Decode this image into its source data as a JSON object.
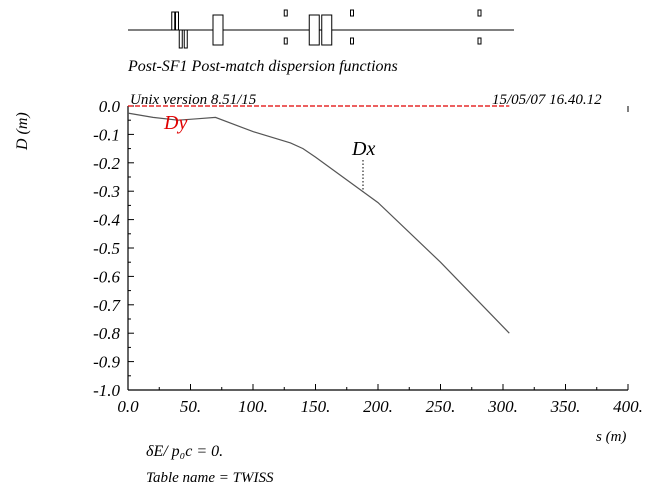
{
  "chart_data": {
    "type": "line",
    "title": "Post-SF1 Post-match dispersion functions",
    "version": "Unix version 8.51/15",
    "date": "15/05/07 16.40.12",
    "xlabel": "s (m)",
    "ylabel": "D (m)",
    "xlim": [
      0,
      400
    ],
    "ylim": [
      -1.0,
      0.0
    ],
    "x_ticks": [
      "0.0",
      "50.",
      "100.",
      "150.",
      "200.",
      "250.",
      "300.",
      "350.",
      "400."
    ],
    "y_ticks": [
      "0.0",
      "-0.1",
      "-0.2",
      "-0.3",
      "-0.4",
      "-0.5",
      "-0.6",
      "-0.7",
      "-0.8",
      "-0.9",
      "-1.0"
    ],
    "series": [
      {
        "name": "Dx",
        "color": "#555555",
        "x": [
          0,
          20,
          40,
          55,
          70,
          100,
          130,
          140,
          150,
          200,
          250,
          305
        ],
        "y": [
          -0.025,
          -0.04,
          -0.05,
          -0.045,
          -0.04,
          -0.09,
          -0.13,
          -0.15,
          -0.18,
          -0.34,
          -0.55,
          -0.8
        ]
      },
      {
        "name": "Dy",
        "color": "#e00000",
        "x": [
          0,
          50,
          100,
          150,
          200,
          250,
          305
        ],
        "y": [
          0.0,
          0.0,
          0.0,
          0.0,
          0.0,
          0.0,
          0.0
        ]
      }
    ],
    "legend_labels": {
      "dx": "Dx",
      "dy": "Dy"
    },
    "annotations": [
      "δE/ p₀c  =  0.",
      "Table name = TWISS"
    ]
  },
  "lattice": {
    "elements": [
      {
        "s": 35,
        "type": "quad-up"
      },
      {
        "s": 38,
        "type": "quad-up"
      },
      {
        "s": 41,
        "type": "quad-down"
      },
      {
        "s": 45,
        "type": "quad-down"
      },
      {
        "s": 68,
        "type": "bend"
      },
      {
        "s": 125,
        "type": "quad-small"
      },
      {
        "s": 145,
        "type": "bend"
      },
      {
        "s": 155,
        "type": "bend"
      },
      {
        "s": 178,
        "type": "quad-small"
      },
      {
        "s": 280,
        "type": "quad-small"
      }
    ]
  }
}
